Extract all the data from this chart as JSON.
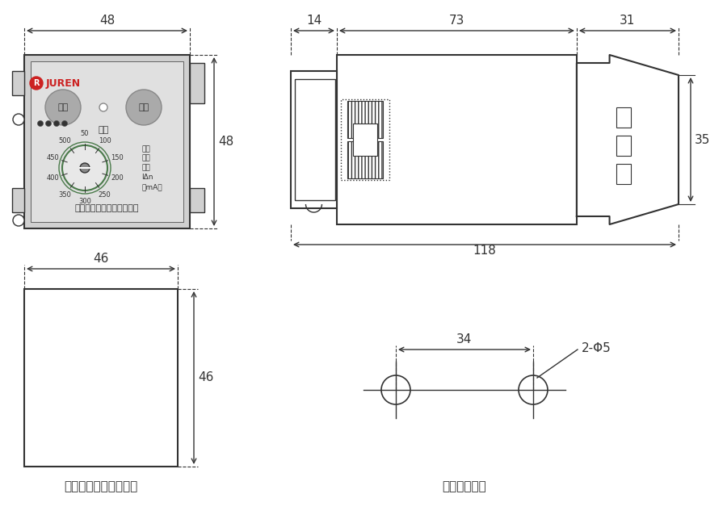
{
  "bg_color": "#ffffff",
  "line_color": "#333333",
  "gray_panel": "#d0d0d0",
  "green_circle": "#4a7a4a",
  "red_color": "#cc2222",
  "font_size_dim": 11,
  "font_size_label": 11,
  "font_size_small": 8,
  "title_font_size": 13,
  "dim_48_front_horiz": "48",
  "dim_48_front_vert": "48",
  "dim_14": "14",
  "dim_73": "73",
  "dim_31": "31",
  "dim_35": "35",
  "dim_118": "118",
  "dim_46_horiz": "46",
  "dim_46_vert": "46",
  "dim_34": "34",
  "hole_label": "2-Φ5",
  "label_front": "嵌入式面板开孔尺寸图",
  "label_side": "固定式尺寸图",
  "company": "上海聚仁电力科技有限公司",
  "brand": "JUREN",
  "btn1": "复位",
  "btn2": "试验",
  "action": "动作",
  "leak_label": "漏电\n动作\n电流\nIΔn\n（mA）",
  "dial_values": [
    "50",
    "100",
    "150",
    "200",
    "250",
    "300",
    "350",
    "400",
    "450",
    "500"
  ]
}
